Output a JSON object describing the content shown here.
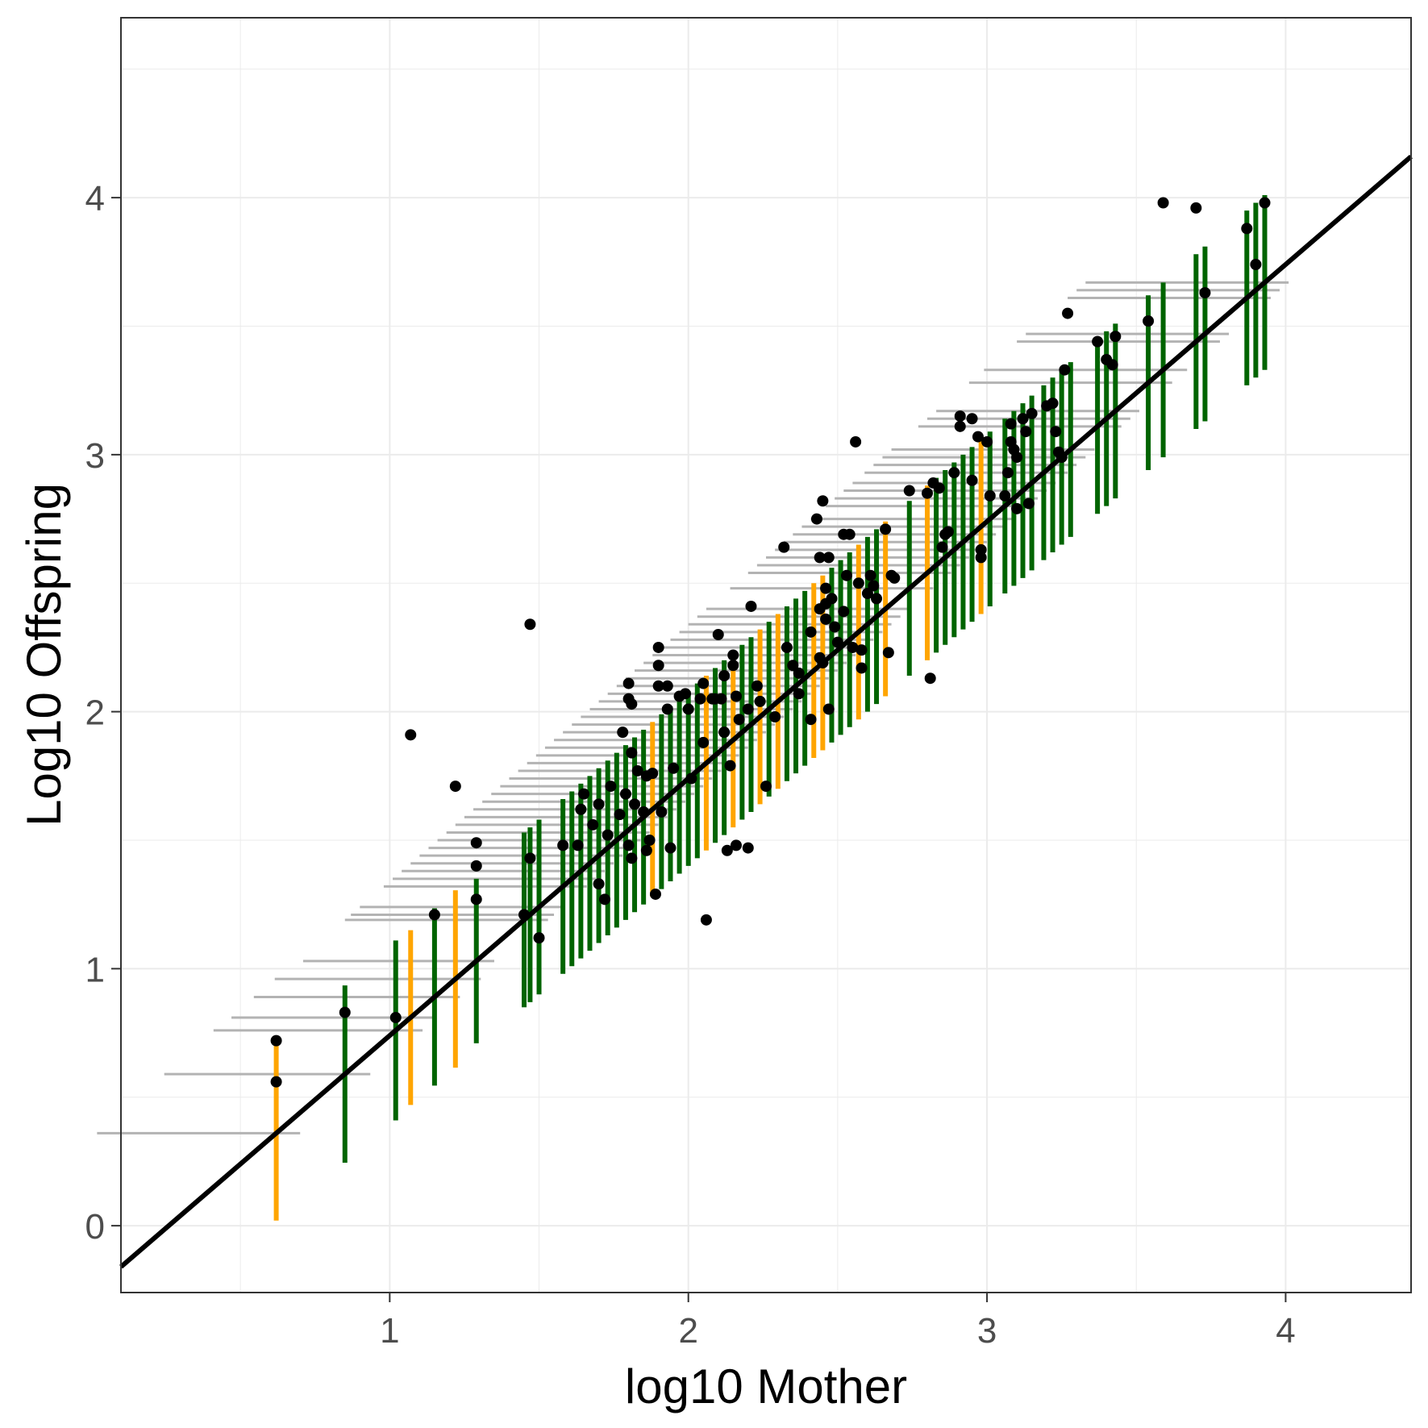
{
  "chart_data": {
    "type": "scatter",
    "title": "",
    "xlabel": "log10 Mother",
    "ylabel": "Log10 Offspring",
    "xlim": [
      0.1,
      4.42
    ],
    "ylim": [
      -0.26,
      4.7
    ],
    "x_ticks": [
      1,
      2,
      3,
      4
    ],
    "x_tick_labels": [
      "1",
      "2",
      "3",
      "4"
    ],
    "y_ticks": [
      0,
      1,
      2,
      3,
      4
    ],
    "y_tick_labels": [
      "0",
      "1",
      "2",
      "3",
      "4"
    ],
    "grid": true,
    "legend": "none",
    "colors": {
      "points": "#000000",
      "fit_line": "#000000",
      "band_green": "#006400",
      "band_orange": "#FFA500",
      "horizontal_segments": "#b3b3b3",
      "grid": "#ebebeb",
      "panel_border": "#333333"
    },
    "fit_line": {
      "slope": 1.0,
      "intercept": -0.26
    },
    "intervals": [
      [
        0.62,
        0.36,
        0.68,
        "o"
      ],
      [
        0.85,
        0.59,
        0.69,
        "g"
      ],
      [
        1.02,
        0.76,
        0.7,
        "g"
      ],
      [
        1.07,
        0.81,
        0.68,
        "o"
      ],
      [
        1.15,
        0.89,
        0.69,
        "g"
      ],
      [
        1.22,
        0.96,
        0.69,
        "o"
      ],
      [
        1.29,
        1.03,
        0.64,
        "g"
      ],
      [
        1.45,
        1.19,
        0.68,
        "g"
      ],
      [
        1.47,
        1.21,
        0.68,
        "g"
      ],
      [
        1.5,
        1.24,
        0.68,
        "g"
      ],
      [
        1.58,
        1.32,
        0.68,
        "g"
      ],
      [
        1.61,
        1.35,
        0.68,
        "g"
      ],
      [
        1.64,
        1.38,
        0.68,
        "g"
      ],
      [
        1.67,
        1.41,
        0.68,
        "g"
      ],
      [
        1.7,
        1.44,
        0.68,
        "g"
      ],
      [
        1.73,
        1.47,
        0.68,
        "g"
      ],
      [
        1.76,
        1.5,
        0.68,
        "g"
      ],
      [
        1.79,
        1.53,
        0.68,
        "g"
      ],
      [
        1.82,
        1.56,
        0.68,
        "g"
      ],
      [
        1.85,
        1.59,
        0.68,
        "g"
      ],
      [
        1.88,
        1.62,
        0.68,
        "o"
      ],
      [
        1.91,
        1.65,
        0.68,
        "g"
      ],
      [
        1.94,
        1.68,
        0.68,
        "g"
      ],
      [
        1.97,
        1.71,
        0.68,
        "g"
      ],
      [
        2.0,
        1.74,
        0.68,
        "g"
      ],
      [
        2.03,
        1.77,
        0.68,
        "g"
      ],
      [
        2.06,
        1.8,
        0.68,
        "o"
      ],
      [
        2.09,
        1.83,
        0.68,
        "g"
      ],
      [
        2.12,
        1.86,
        0.68,
        "g"
      ],
      [
        2.15,
        1.89,
        0.68,
        "o"
      ],
      [
        2.18,
        1.92,
        0.68,
        "g"
      ],
      [
        2.21,
        1.95,
        0.68,
        "g"
      ],
      [
        2.24,
        1.98,
        0.68,
        "o"
      ],
      [
        2.27,
        2.01,
        0.68,
        "g"
      ],
      [
        2.3,
        2.04,
        0.68,
        "o"
      ],
      [
        2.33,
        2.07,
        0.68,
        "g"
      ],
      [
        2.36,
        2.1,
        0.68,
        "g"
      ],
      [
        2.39,
        2.13,
        0.68,
        "g"
      ],
      [
        2.42,
        2.16,
        0.68,
        "o"
      ],
      [
        2.45,
        2.19,
        0.68,
        "o"
      ],
      [
        2.48,
        2.22,
        0.68,
        "g"
      ],
      [
        2.51,
        2.25,
        0.68,
        "g"
      ],
      [
        2.54,
        2.28,
        0.68,
        "g"
      ],
      [
        2.57,
        2.31,
        0.68,
        "o"
      ],
      [
        2.6,
        2.34,
        0.68,
        "g"
      ],
      [
        2.63,
        2.37,
        0.68,
        "g"
      ],
      [
        2.66,
        2.4,
        0.68,
        "o"
      ],
      [
        2.74,
        2.48,
        0.68,
        "g"
      ],
      [
        2.8,
        2.54,
        0.68,
        "o"
      ],
      [
        2.83,
        2.57,
        0.68,
        "g"
      ],
      [
        2.86,
        2.6,
        0.68,
        "g"
      ],
      [
        2.89,
        2.63,
        0.68,
        "g"
      ],
      [
        2.92,
        2.66,
        0.68,
        "g"
      ],
      [
        2.95,
        2.69,
        0.68,
        "g"
      ],
      [
        2.98,
        2.72,
        0.68,
        "o"
      ],
      [
        3.01,
        2.75,
        0.68,
        "g"
      ],
      [
        3.06,
        2.8,
        0.68,
        "g"
      ],
      [
        3.09,
        2.83,
        0.68,
        "g"
      ],
      [
        3.12,
        2.86,
        0.68,
        "g"
      ],
      [
        3.15,
        2.89,
        0.68,
        "g"
      ],
      [
        3.19,
        2.93,
        0.68,
        "g"
      ],
      [
        3.22,
        2.96,
        0.68,
        "g"
      ],
      [
        3.25,
        2.99,
        0.68,
        "g"
      ],
      [
        3.28,
        3.02,
        0.68,
        "g"
      ],
      [
        3.37,
        3.11,
        0.68,
        "g"
      ],
      [
        3.4,
        3.14,
        0.68,
        "g"
      ],
      [
        3.43,
        3.17,
        0.68,
        "g"
      ],
      [
        3.54,
        3.28,
        0.68,
        "g"
      ],
      [
        3.59,
        3.33,
        0.68,
        "g"
      ],
      [
        3.7,
        3.44,
        0.68,
        "g"
      ],
      [
        3.73,
        3.47,
        0.68,
        "g"
      ],
      [
        3.87,
        3.61,
        0.68,
        "g"
      ],
      [
        3.9,
        3.64,
        0.68,
        "g"
      ],
      [
        3.93,
        3.67,
        0.68,
        "g"
      ]
    ],
    "points": [
      [
        0.62,
        0.56
      ],
      [
        0.62,
        0.72
      ],
      [
        0.85,
        0.83
      ],
      [
        1.02,
        0.81
      ],
      [
        1.07,
        1.91
      ],
      [
        1.15,
        1.21
      ],
      [
        1.22,
        1.71
      ],
      [
        1.29,
        1.27
      ],
      [
        1.29,
        1.4
      ],
      [
        1.29,
        1.49
      ],
      [
        1.45,
        1.21
      ],
      [
        1.47,
        2.34
      ],
      [
        1.47,
        1.43
      ],
      [
        1.5,
        1.12
      ],
      [
        1.58,
        1.48
      ],
      [
        1.63,
        1.48
      ],
      [
        1.64,
        1.62
      ],
      [
        1.65,
        1.68
      ],
      [
        1.68,
        1.56
      ],
      [
        1.7,
        1.33
      ],
      [
        1.7,
        1.64
      ],
      [
        1.72,
        1.27
      ],
      [
        1.73,
        1.52
      ],
      [
        1.74,
        1.71
      ],
      [
        1.77,
        1.6
      ],
      [
        1.78,
        1.92
      ],
      [
        1.79,
        1.68
      ],
      [
        1.8,
        2.05
      ],
      [
        1.8,
        2.11
      ],
      [
        1.8,
        1.48
      ],
      [
        1.81,
        1.43
      ],
      [
        1.81,
        2.03
      ],
      [
        1.81,
        1.84
      ],
      [
        1.82,
        1.64
      ],
      [
        1.83,
        1.77
      ],
      [
        1.85,
        1.61
      ],
      [
        1.86,
        1.46
      ],
      [
        1.86,
        1.75
      ],
      [
        1.87,
        1.5
      ],
      [
        1.88,
        1.76
      ],
      [
        1.89,
        1.29
      ],
      [
        1.9,
        2.25
      ],
      [
        1.9,
        2.1
      ],
      [
        1.9,
        2.18
      ],
      [
        1.91,
        1.61
      ],
      [
        1.93,
        2.01
      ],
      [
        1.93,
        2.1
      ],
      [
        1.94,
        1.47
      ],
      [
        1.95,
        1.78
      ],
      [
        1.97,
        2.06
      ],
      [
        1.99,
        2.07
      ],
      [
        2.0,
        2.01
      ],
      [
        2.01,
        1.74
      ],
      [
        2.04,
        2.05
      ],
      [
        2.05,
        1.88
      ],
      [
        2.05,
        2.11
      ],
      [
        2.06,
        1.19
      ],
      [
        2.08,
        2.05
      ],
      [
        2.09,
        2.05
      ],
      [
        2.1,
        2.3
      ],
      [
        2.11,
        2.05
      ],
      [
        2.12,
        2.14
      ],
      [
        2.12,
        1.92
      ],
      [
        2.13,
        1.46
      ],
      [
        2.14,
        1.79
      ],
      [
        2.15,
        2.22
      ],
      [
        2.15,
        2.18
      ],
      [
        2.16,
        2.06
      ],
      [
        2.16,
        1.48
      ],
      [
        2.17,
        1.97
      ],
      [
        2.2,
        1.47
      ],
      [
        2.2,
        2.01
      ],
      [
        2.21,
        2.41
      ],
      [
        2.23,
        2.1
      ],
      [
        2.24,
        2.04
      ],
      [
        2.26,
        1.71
      ],
      [
        2.29,
        1.98
      ],
      [
        2.32,
        2.64
      ],
      [
        2.33,
        2.25
      ],
      [
        2.35,
        2.18
      ],
      [
        2.37,
        2.07
      ],
      [
        2.37,
        2.15
      ],
      [
        2.41,
        1.97
      ],
      [
        2.41,
        2.31
      ],
      [
        2.43,
        2.75
      ],
      [
        2.44,
        2.6
      ],
      [
        2.44,
        2.4
      ],
      [
        2.44,
        2.21
      ],
      [
        2.45,
        2.19
      ],
      [
        2.45,
        2.82
      ],
      [
        2.46,
        2.48
      ],
      [
        2.46,
        2.36
      ],
      [
        2.46,
        2.42
      ],
      [
        2.47,
        2.6
      ],
      [
        2.47,
        2.01
      ],
      [
        2.48,
        2.44
      ],
      [
        2.49,
        2.33
      ],
      [
        2.5,
        2.27
      ],
      [
        2.52,
        2.69
      ],
      [
        2.52,
        2.39
      ],
      [
        2.53,
        2.53
      ],
      [
        2.54,
        2.69
      ],
      [
        2.55,
        2.25
      ],
      [
        2.56,
        3.05
      ],
      [
        2.57,
        2.5
      ],
      [
        2.58,
        2.24
      ],
      [
        2.58,
        2.17
      ],
      [
        2.6,
        2.46
      ],
      [
        2.61,
        2.53
      ],
      [
        2.62,
        2.49
      ],
      [
        2.63,
        2.44
      ],
      [
        2.66,
        2.71
      ],
      [
        2.67,
        2.23
      ],
      [
        2.68,
        2.53
      ],
      [
        2.69,
        2.52
      ],
      [
        2.74,
        2.86
      ],
      [
        2.8,
        2.85
      ],
      [
        2.81,
        2.13
      ],
      [
        2.82,
        2.89
      ],
      [
        2.84,
        2.87
      ],
      [
        2.85,
        2.64
      ],
      [
        2.86,
        2.69
      ],
      [
        2.87,
        2.7
      ],
      [
        2.89,
        2.93
      ],
      [
        2.91,
        3.15
      ],
      [
        2.91,
        3.11
      ],
      [
        2.95,
        2.9
      ],
      [
        2.95,
        3.14
      ],
      [
        2.97,
        3.07
      ],
      [
        2.98,
        2.6
      ],
      [
        2.98,
        2.63
      ],
      [
        3.0,
        3.05
      ],
      [
        3.01,
        2.84
      ],
      [
        3.06,
        2.84
      ],
      [
        3.07,
        2.93
      ],
      [
        3.08,
        3.05
      ],
      [
        3.08,
        3.12
      ],
      [
        3.09,
        3.02
      ],
      [
        3.1,
        2.79
      ],
      [
        3.1,
        2.99
      ],
      [
        3.12,
        3.14
      ],
      [
        3.13,
        3.09
      ],
      [
        3.14,
        2.81
      ],
      [
        3.15,
        3.16
      ],
      [
        3.2,
        3.19
      ],
      [
        3.22,
        3.2
      ],
      [
        3.23,
        3.09
      ],
      [
        3.24,
        3.01
      ],
      [
        3.25,
        2.99
      ],
      [
        3.26,
        3.33
      ],
      [
        3.27,
        3.55
      ],
      [
        3.37,
        3.44
      ],
      [
        3.4,
        3.37
      ],
      [
        3.42,
        3.35
      ],
      [
        3.43,
        3.46
      ],
      [
        3.54,
        3.52
      ],
      [
        3.59,
        3.98
      ],
      [
        3.7,
        3.96
      ],
      [
        3.73,
        3.63
      ],
      [
        3.87,
        3.88
      ],
      [
        3.9,
        3.74
      ],
      [
        3.93,
        3.98
      ]
    ]
  }
}
